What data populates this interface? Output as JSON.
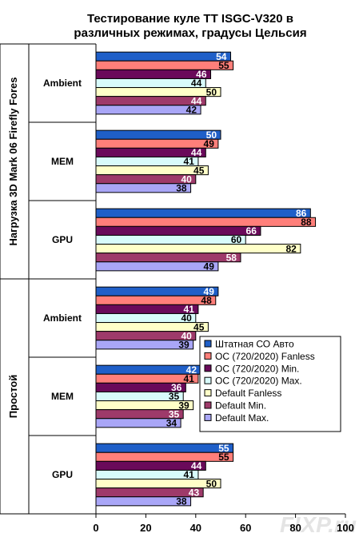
{
  "chart_data": {
    "type": "bar",
    "orientation": "horizontal",
    "title_lines": [
      "Тестирование куле TT ISGC-V320 в",
      "различных режимах, градусы Цельсия"
    ],
    "xlim": [
      0,
      100
    ],
    "xticks": [
      0,
      20,
      40,
      60,
      80,
      100
    ],
    "grid": false,
    "legend_position": "right",
    "groups": [
      {
        "label": "Нагрузка 3D Mark 06 Firefly Fores",
        "categories": [
          "Ambient",
          "MEM",
          "GPU"
        ]
      },
      {
        "label": "Простой",
        "categories": [
          "Ambient",
          "MEM",
          "GPU"
        ]
      }
    ],
    "categories": [
      "Нагрузка 3D Mark 06 Firefly Fores / Ambient",
      "Нагрузка 3D Mark 06 Firefly Fores / MEM",
      "Нагрузка 3D Mark 06 Firefly Fores / GPU",
      "Простой / Ambient",
      "Простой / MEM",
      "Простой / GPU"
    ],
    "series": [
      {
        "name": "Штатная СО Авто",
        "color": "#1f5fc8",
        "label_color": "#ffffff",
        "values": [
          54,
          50,
          86,
          49,
          42,
          55
        ]
      },
      {
        "name": "ОС (720/2020)  Fanless",
        "color": "#ff7f7a",
        "label_color": "#000000",
        "values": [
          55,
          49,
          88,
          48,
          41,
          55
        ]
      },
      {
        "name": "ОС (720/2020)  Min.",
        "color": "#6a0a5a",
        "label_color": "#ffffff",
        "values": [
          46,
          44,
          66,
          41,
          36,
          44
        ]
      },
      {
        "name": "ОС (720/2020)  Max.",
        "color": "#d8fbfb",
        "label_color": "#000000",
        "values": [
          44,
          41,
          60,
          40,
          35,
          41
        ]
      },
      {
        "name": "Default Fanless",
        "color": "#ffffc8",
        "label_color": "#000000",
        "values": [
          50,
          45,
          82,
          45,
          39,
          50
        ]
      },
      {
        "name": "Default Min.",
        "color": "#9e3a6a",
        "label_color": "#ffffff",
        "values": [
          44,
          40,
          58,
          40,
          35,
          43
        ]
      },
      {
        "name": "Default Max.",
        "color": "#a9a6f7",
        "label_color": "#000000",
        "values": [
          42,
          38,
          49,
          39,
          34,
          38
        ]
      }
    ],
    "watermark": "F!XP.ru"
  }
}
